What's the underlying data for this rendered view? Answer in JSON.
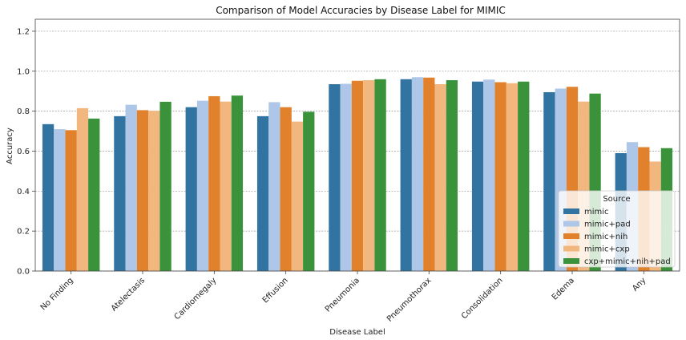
{
  "chart_data": {
    "type": "bar",
    "title": "Comparison of Model Accuracies by Disease Label for MIMIC",
    "xlabel": "Disease Label",
    "ylabel": "Accuracy",
    "ylim": [
      0,
      1.26
    ],
    "yticks": [
      0.0,
      0.2,
      0.4,
      0.6,
      0.8,
      1.0,
      1.2
    ],
    "ytick_labels": [
      "0.0",
      "0.2",
      "0.4",
      "0.6",
      "0.8",
      "1.0",
      "1.2"
    ],
    "grid": "horizontal-dashed",
    "legend": {
      "title": "Source",
      "placement": "bottom-right"
    },
    "categories": [
      "No Finding",
      "Atelectasis",
      "Cardiomegaly",
      "Effusion",
      "Pneumonia",
      "Pneumothorax",
      "Consolidation",
      "Edema",
      "Any"
    ],
    "series": [
      {
        "name": "mimic",
        "color": "#3274a1",
        "values": [
          0.735,
          0.775,
          0.82,
          0.775,
          0.935,
          0.96,
          0.948,
          0.895,
          0.59
        ]
      },
      {
        "name": "mimic+pad",
        "color": "#aec7e8",
        "values": [
          0.71,
          0.832,
          0.852,
          0.845,
          0.937,
          0.97,
          0.958,
          0.913,
          0.645
        ]
      },
      {
        "name": "mimic+nih",
        "color": "#e1812c",
        "values": [
          0.705,
          0.805,
          0.875,
          0.82,
          0.952,
          0.968,
          0.945,
          0.922,
          0.62
        ]
      },
      {
        "name": "mimic+cxp",
        "color": "#f2b77e",
        "values": [
          0.815,
          0.802,
          0.848,
          0.748,
          0.955,
          0.935,
          0.94,
          0.848,
          0.548
        ]
      },
      {
        "name": "cxp+mimic+nih+pad",
        "color": "#3a923a",
        "values": [
          0.763,
          0.847,
          0.878,
          0.797,
          0.96,
          0.955,
          0.948,
          0.888,
          0.615
        ]
      }
    ]
  }
}
